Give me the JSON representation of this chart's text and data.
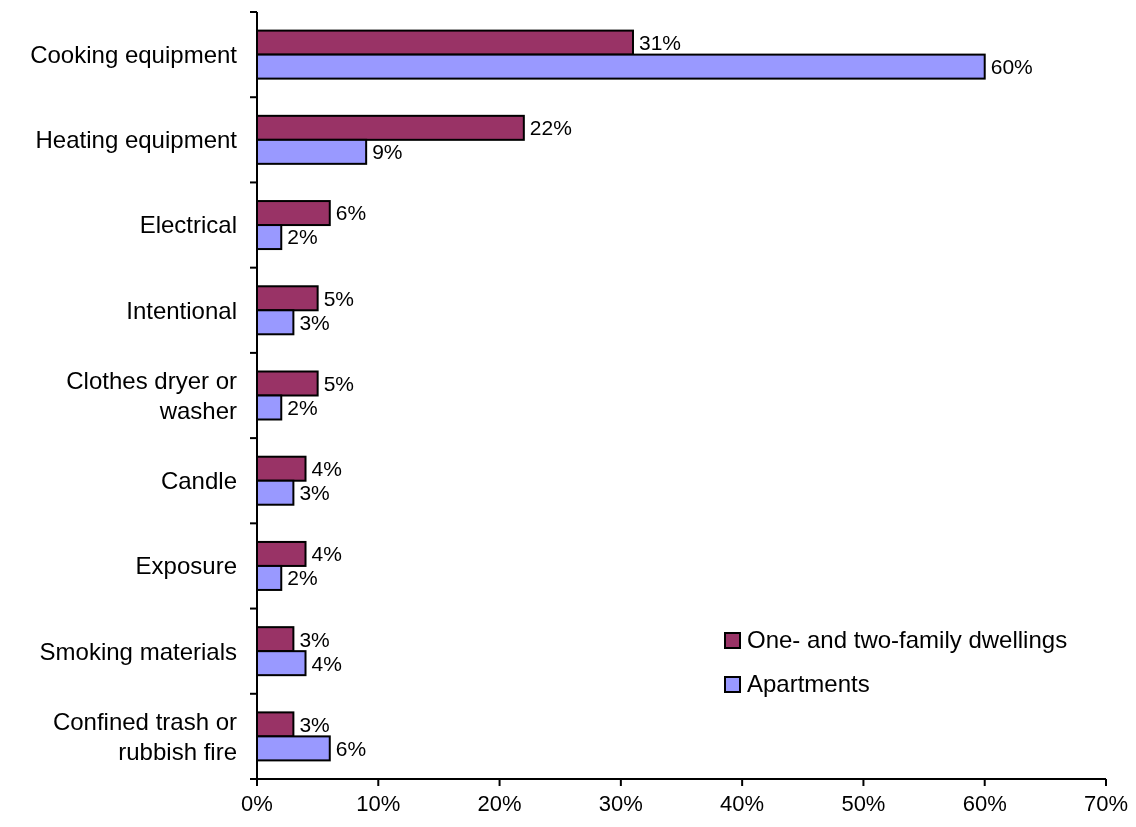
{
  "chart_data": {
    "type": "bar",
    "orientation": "horizontal",
    "categories": [
      "Cooking equipment",
      "Heating equipment",
      "Electrical",
      "Intentional",
      "Clothes dryer or washer",
      "Candle",
      "Exposure",
      "Smoking materials",
      "Confined trash or rubbish fire"
    ],
    "series": [
      {
        "name": "One- and two-family dwellings",
        "color": "#993366",
        "values": [
          31,
          22,
          6,
          5,
          5,
          4,
          4,
          3,
          3
        ],
        "value_labels": [
          "31%",
          "22%",
          "6%",
          "5%",
          "5%",
          "4%",
          "4%",
          "3%",
          "3%"
        ]
      },
      {
        "name": "Apartments",
        "color": "#9999ff",
        "values": [
          60,
          9,
          2,
          3,
          2,
          3,
          2,
          4,
          6
        ],
        "value_labels": [
          "60%",
          "9%",
          "2%",
          "3%",
          "2%",
          "3%",
          "2%",
          "4%",
          "6%"
        ]
      }
    ],
    "xlim": [
      0,
      70
    ],
    "xticks": [
      {
        "value": 0,
        "label": "0%"
      },
      {
        "value": 10,
        "label": "10%"
      },
      {
        "value": 20,
        "label": "20%"
      },
      {
        "value": 30,
        "label": "30%"
      },
      {
        "value": 40,
        "label": "40%"
      },
      {
        "value": 50,
        "label": "50%"
      },
      {
        "value": 60,
        "label": "60%"
      },
      {
        "value": 70,
        "label": "70%"
      }
    ],
    "legend": "bottom right"
  }
}
